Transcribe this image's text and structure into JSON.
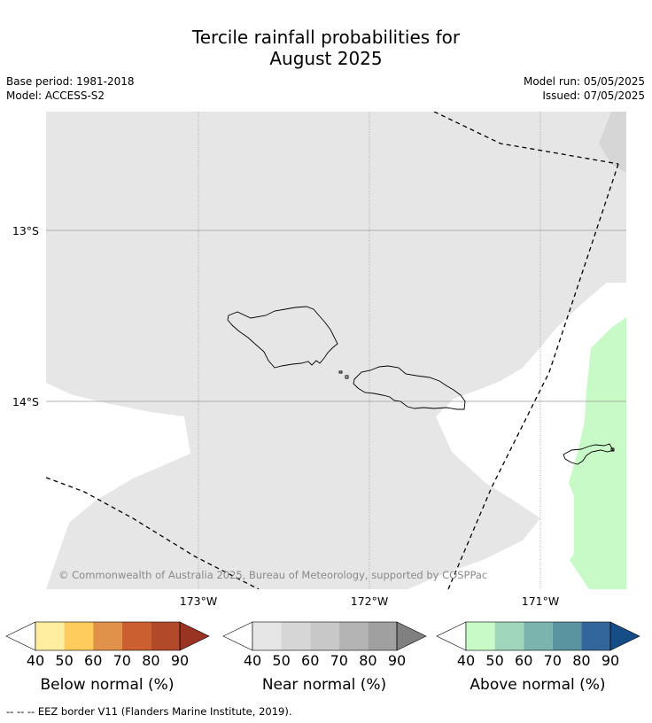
{
  "title_line1": "Tercile rainfall probabilities for",
  "title_line2": "August 2025",
  "base_period": "Base period: 1981-2018",
  "model": "Model: ACCESS-S2",
  "model_run": "Model run: 05/05/2025",
  "issued": "Issued: 07/05/2025",
  "map": {
    "lat_labels": [
      "13°S",
      "14°S"
    ],
    "lon_labels": [
      "173°W",
      "172°W",
      "171°W"
    ],
    "copyright": "© Commonwealth of Australia 2025, Bureau of Meteorology, supported by COSPPac",
    "colors": {
      "near_normal_fill": "#e6e6e6",
      "near_normal_dark": "#d6d6d6",
      "above_normal_fill": "#c8fac8",
      "coastline": "#000000",
      "eez": "#000000"
    }
  },
  "colorbars": [
    {
      "title": "Below normal (%)",
      "ticks": [
        "40",
        "50",
        "60",
        "70",
        "80",
        "90"
      ],
      "colors": [
        "#ffffff",
        "#ffeda0",
        "#fecc5c",
        "#e0924a",
        "#cc5f30",
        "#b24a2a",
        "#993322"
      ]
    },
    {
      "title": "Near normal (%)",
      "ticks": [
        "40",
        "50",
        "60",
        "70",
        "80",
        "90"
      ],
      "colors": [
        "#ffffff",
        "#e6e6e6",
        "#d6d6d6",
        "#c8c8c8",
        "#b4b4b4",
        "#a0a0a0",
        "#808080"
      ]
    },
    {
      "title": "Above normal (%)",
      "ticks": [
        "40",
        "50",
        "60",
        "70",
        "80",
        "90"
      ],
      "colors": [
        "#ffffff",
        "#c8fac8",
        "#a0d6bc",
        "#7bb4ae",
        "#5a94a0",
        "#33669a",
        "#154e87"
      ]
    }
  ],
  "footer": "--  --  -- EEZ border V11 (Flanders Marine Institute, 2019)."
}
